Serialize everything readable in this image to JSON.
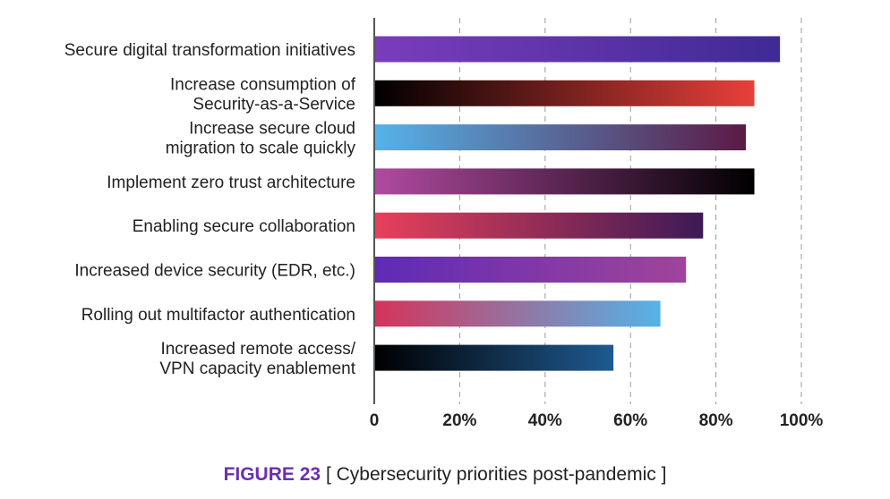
{
  "chart_data": {
    "type": "bar",
    "orientation": "horizontal",
    "title": "",
    "xlabel": "",
    "ylabel": "",
    "xlim": [
      0,
      100
    ],
    "categories": [
      [
        "Secure digital transformation initiatives"
      ],
      [
        "Increase consumption of",
        "Security-as-a-Service"
      ],
      [
        "Increase secure cloud",
        "migration to scale quickly"
      ],
      [
        "Implement zero trust architecture"
      ],
      [
        "Enabling secure collaboration"
      ],
      [
        "Increased device security (EDR, etc.)"
      ],
      [
        "Rolling out multifactor authentication"
      ],
      [
        "Increased remote access/",
        "VPN capacity enablement"
      ]
    ],
    "values": [
      95,
      89,
      87,
      89,
      77,
      73,
      67,
      56
    ],
    "bar_gradients": [
      [
        "#7a3dbb",
        "#3f2a95"
      ],
      [
        "#000000",
        "#e8403a"
      ],
      [
        "#55b3e8",
        "#5b1a45"
      ],
      [
        "#b04aa0",
        "#000000"
      ],
      [
        "#e8405a",
        "#3d1a55"
      ],
      [
        "#5e2bb5",
        "#a0449a"
      ],
      [
        "#d4345a",
        "#55b3e8"
      ],
      [
        "#000000",
        "#1f5a90"
      ]
    ],
    "x_tick_labels": [
      "0",
      "20%",
      "40%",
      "60%",
      "80%",
      "100%"
    ],
    "x_ticks": [
      0,
      20,
      40,
      60,
      80,
      100
    ],
    "grid": "vertical dashed"
  },
  "caption": {
    "figure_id": "FIGURE 23",
    "text": "[ Cybersecurity priorities post-pandemic ]"
  }
}
